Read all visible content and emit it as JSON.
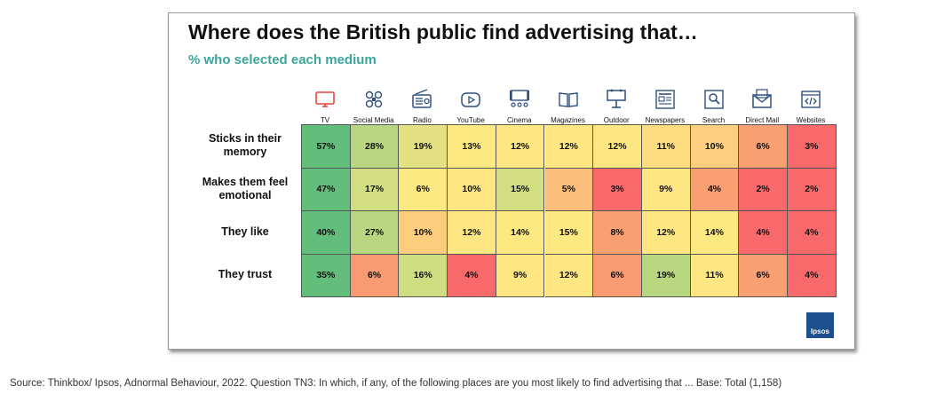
{
  "title": "Where does the British public find advertising that…",
  "subtitle": "% who selected each medium",
  "source": "Source: Thinkbox/ Ipsos, Adnormal Behaviour, 2022. Question TN3: In which, if any, of the following places are you most likely to find advertising that ... Base: Total (1,158)",
  "logo_text": "Ipsos",
  "icon_colors": {
    "tv": "#e8433c",
    "other": "#2f4f7f"
  },
  "media": [
    {
      "label": "TV",
      "icon": "tv-icon"
    },
    {
      "label": "Social Media",
      "icon": "social-media-icon"
    },
    {
      "label": "Radio",
      "icon": "radio-icon"
    },
    {
      "label": "YouTube",
      "icon": "youtube-icon"
    },
    {
      "label": "Cinema",
      "icon": "cinema-icon"
    },
    {
      "label": "Magazines",
      "icon": "magazine-icon"
    },
    {
      "label": "Outdoor",
      "icon": "billboard-icon"
    },
    {
      "label": "Newspapers",
      "icon": "newspaper-icon"
    },
    {
      "label": "Search",
      "icon": "search-icon"
    },
    {
      "label": "Direct Mail",
      "icon": "mail-icon"
    },
    {
      "label": "Websites",
      "icon": "code-icon"
    }
  ],
  "rows": [
    {
      "label": "Sticks in their memory",
      "cells": [
        "57%",
        "28%",
        "19%",
        "13%",
        "12%",
        "12%",
        "12%",
        "11%",
        "10%",
        "6%",
        "3%"
      ]
    },
    {
      "label": "Makes them feel emotional",
      "cells": [
        "47%",
        "17%",
        "6%",
        "10%",
        "15%",
        "5%",
        "3%",
        "9%",
        "4%",
        "2%",
        "2%"
      ]
    },
    {
      "label": "They like",
      "cells": [
        "40%",
        "27%",
        "10%",
        "12%",
        "14%",
        "15%",
        "8%",
        "12%",
        "14%",
        "4%",
        "4%"
      ]
    },
    {
      "label": "They trust",
      "cells": [
        "35%",
        "6%",
        "16%",
        "4%",
        "9%",
        "12%",
        "6%",
        "19%",
        "11%",
        "6%",
        "4%"
      ]
    }
  ],
  "cell_colors": [
    [
      "#63be7b",
      "#b9d780",
      "#e4e183",
      "#fde981",
      "#fee782",
      "#fee782",
      "#fee782",
      "#fedd81",
      "#fdcf7e",
      "#f9a073",
      "#f8696b"
    ],
    [
      "#63be7b",
      "#d2de82",
      "#fde981",
      "#fee782",
      "#d2de82",
      "#fcbf7b",
      "#f8696b",
      "#fee782",
      "#fa9e74",
      "#f8696b",
      "#f8696b"
    ],
    [
      "#63be7b",
      "#b9d780",
      "#fbcd7d",
      "#fee782",
      "#fde981",
      "#fde981",
      "#f9a073",
      "#fee782",
      "#fde981",
      "#f8696b",
      "#f8696b"
    ],
    [
      "#63be7b",
      "#f99b72",
      "#cfdd82",
      "#f8696b",
      "#fee782",
      "#fee782",
      "#f99b72",
      "#b9d780",
      "#fee782",
      "#f9a073",
      "#f8696b"
    ]
  ],
  "chart_data": {
    "type": "heatmap",
    "title": "Where does the British public find advertising that…",
    "subtitle": "% who selected each medium",
    "x_categories": [
      "TV",
      "Social Media",
      "Radio",
      "YouTube",
      "Cinema",
      "Magazines",
      "Outdoor",
      "Newspapers",
      "Search",
      "Direct Mail",
      "Websites"
    ],
    "y_categories": [
      "Sticks in their memory",
      "Makes them feel emotional",
      "They like",
      "They trust"
    ],
    "values": [
      [
        57,
        28,
        19,
        13,
        12,
        12,
        12,
        11,
        10,
        6,
        3
      ],
      [
        47,
        17,
        6,
        10,
        15,
        5,
        3,
        9,
        4,
        2,
        2
      ],
      [
        40,
        27,
        10,
        12,
        14,
        15,
        8,
        12,
        14,
        4,
        4
      ],
      [
        35,
        6,
        16,
        4,
        9,
        12,
        6,
        19,
        11,
        6,
        4
      ]
    ],
    "unit": "%",
    "color_scale": "green-yellow-red"
  }
}
